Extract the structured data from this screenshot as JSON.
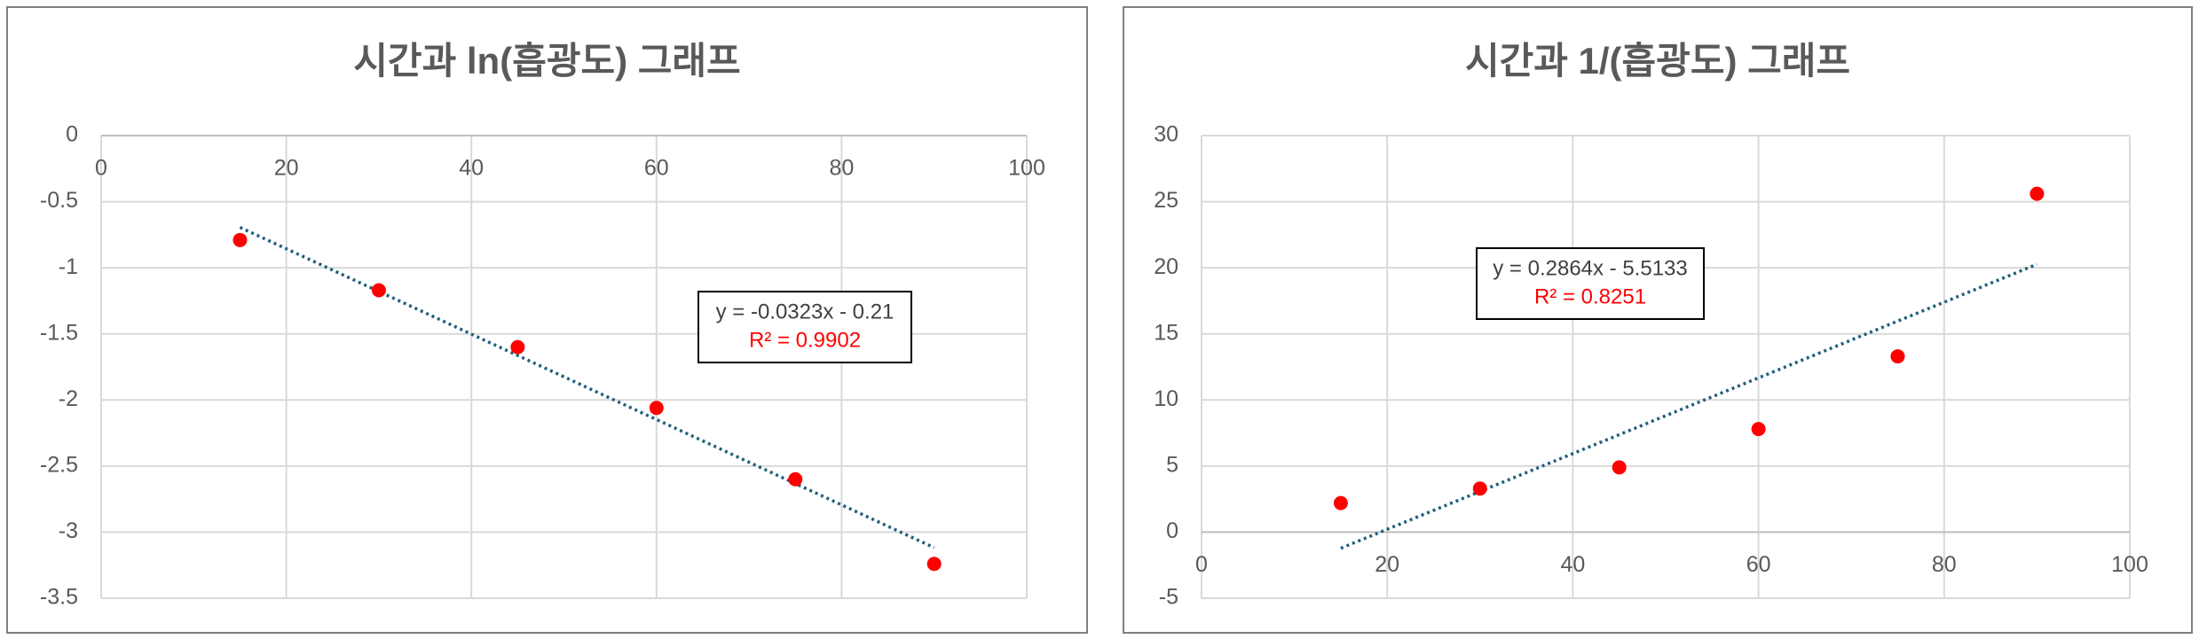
{
  "chart_data": [
    {
      "type": "scatter",
      "title": "시간과 ln(흡광도) 그래프",
      "x": [
        15,
        30,
        45,
        60,
        75,
        90
      ],
      "values": [
        -0.79,
        -1.17,
        -1.6,
        -2.06,
        -2.6,
        -3.24
      ],
      "color": "#ff0000",
      "xlim": [
        0,
        100
      ],
      "xticks": [
        0,
        20,
        40,
        60,
        80,
        100
      ],
      "ylim": [
        -3.5,
        0
      ],
      "yticks": [
        0,
        -0.5,
        -1,
        -1.5,
        -2,
        -2.5,
        -3,
        -3.5
      ],
      "grid": true,
      "trendline": {
        "slope": -0.0323,
        "intercept": -0.21,
        "color": "#1f5f7a",
        "equation": "y = -0.0323x - 0.21",
        "r_squared": "R² = 0.9902"
      }
    },
    {
      "type": "scatter",
      "title": "시간과 1/(흡광도) 그래프",
      "x": [
        15,
        30,
        45,
        60,
        75,
        90
      ],
      "values": [
        2.2,
        3.3,
        4.9,
        7.8,
        13.3,
        25.6
      ],
      "color": "#ff0000",
      "xlim": [
        0,
        100
      ],
      "xticks": [
        0,
        20,
        40,
        60,
        80,
        100
      ],
      "ylim": [
        -5,
        30
      ],
      "yticks": [
        30,
        25,
        20,
        15,
        10,
        5,
        0,
        -5
      ],
      "grid": true,
      "trendline": {
        "slope": 0.2864,
        "intercept": -5.5133,
        "color": "#1f5f7a",
        "equation": "y = 0.2864x - 5.5133",
        "r_squared": "R² = 0.8251"
      }
    }
  ]
}
